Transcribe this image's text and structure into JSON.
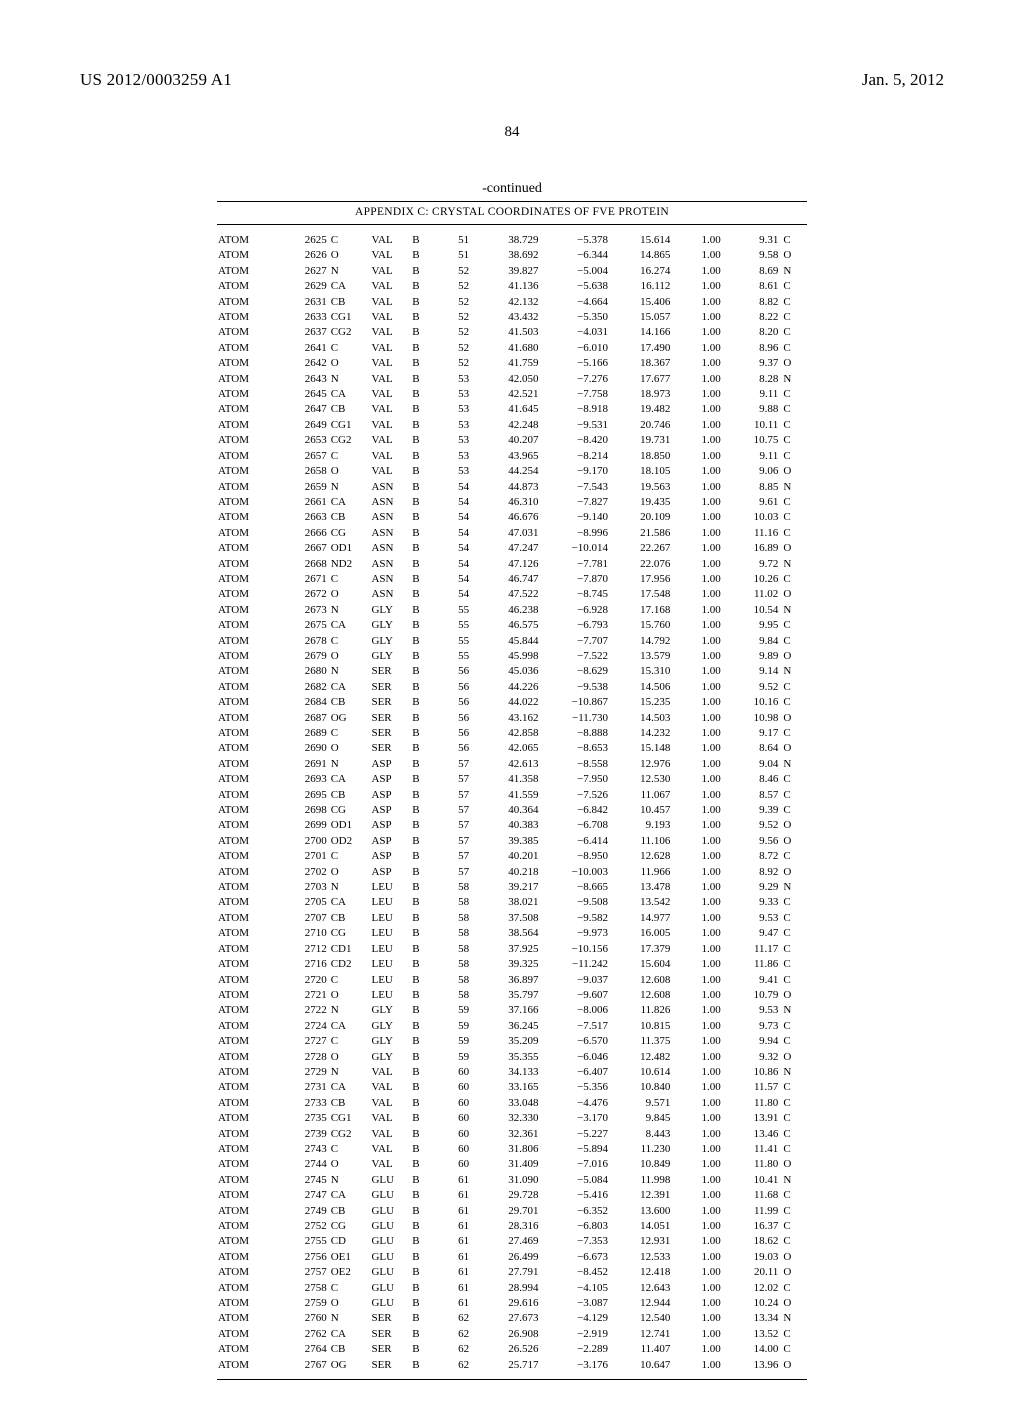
{
  "header": {
    "patent_id": "US 2012/0003259 A1",
    "date": "Jan. 5, 2012"
  },
  "page_number": "84",
  "continued": "-continued",
  "appendix_title": "APPENDIX C: CRYSTAL COORDINATES OF FVE PROTEIN",
  "rows": [
    [
      "ATOM",
      "2625",
      "C",
      "VAL",
      "B",
      "51",
      "38.729",
      "−5.378",
      "15.614",
      "1.00",
      "9.31",
      "C"
    ],
    [
      "ATOM",
      "2626",
      "O",
      "VAL",
      "B",
      "51",
      "38.692",
      "−6.344",
      "14.865",
      "1.00",
      "9.58",
      "O"
    ],
    [
      "ATOM",
      "2627",
      "N",
      "VAL",
      "B",
      "52",
      "39.827",
      "−5.004",
      "16.274",
      "1.00",
      "8.69",
      "N"
    ],
    [
      "ATOM",
      "2629",
      "CA",
      "VAL",
      "B",
      "52",
      "41.136",
      "−5.638",
      "16.112",
      "1.00",
      "8.61",
      "C"
    ],
    [
      "ATOM",
      "2631",
      "CB",
      "VAL",
      "B",
      "52",
      "42.132",
      "−4.664",
      "15.406",
      "1.00",
      "8.82",
      "C"
    ],
    [
      "ATOM",
      "2633",
      "CG1",
      "VAL",
      "B",
      "52",
      "43.432",
      "−5.350",
      "15.057",
      "1.00",
      "8.22",
      "C"
    ],
    [
      "ATOM",
      "2637",
      "CG2",
      "VAL",
      "B",
      "52",
      "41.503",
      "−4.031",
      "14.166",
      "1.00",
      "8.20",
      "C"
    ],
    [
      "ATOM",
      "2641",
      "C",
      "VAL",
      "B",
      "52",
      "41.680",
      "−6.010",
      "17.490",
      "1.00",
      "8.96",
      "C"
    ],
    [
      "ATOM",
      "2642",
      "O",
      "VAL",
      "B",
      "52",
      "41.759",
      "−5.166",
      "18.367",
      "1.00",
      "9.37",
      "O"
    ],
    [
      "ATOM",
      "2643",
      "N",
      "VAL",
      "B",
      "53",
      "42.050",
      "−7.276",
      "17.677",
      "1.00",
      "8.28",
      "N"
    ],
    [
      "ATOM",
      "2645",
      "CA",
      "VAL",
      "B",
      "53",
      "42.521",
      "−7.758",
      "18.973",
      "1.00",
      "9.11",
      "C"
    ],
    [
      "ATOM",
      "2647",
      "CB",
      "VAL",
      "B",
      "53",
      "41.645",
      "−8.918",
      "19.482",
      "1.00",
      "9.88",
      "C"
    ],
    [
      "ATOM",
      "2649",
      "CG1",
      "VAL",
      "B",
      "53",
      "42.248",
      "−9.531",
      "20.746",
      "1.00",
      "10.11",
      "C"
    ],
    [
      "ATOM",
      "2653",
      "CG2",
      "VAL",
      "B",
      "53",
      "40.207",
      "−8.420",
      "19.731",
      "1.00",
      "10.75",
      "C"
    ],
    [
      "ATOM",
      "2657",
      "C",
      "VAL",
      "B",
      "53",
      "43.965",
      "−8.214",
      "18.850",
      "1.00",
      "9.11",
      "C"
    ],
    [
      "ATOM",
      "2658",
      "O",
      "VAL",
      "B",
      "53",
      "44.254",
      "−9.170",
      "18.105",
      "1.00",
      "9.06",
      "O"
    ],
    [
      "ATOM",
      "2659",
      "N",
      "ASN",
      "B",
      "54",
      "44.873",
      "−7.543",
      "19.563",
      "1.00",
      "8.85",
      "N"
    ],
    [
      "ATOM",
      "2661",
      "CA",
      "ASN",
      "B",
      "54",
      "46.310",
      "−7.827",
      "19.435",
      "1.00",
      "9.61",
      "C"
    ],
    [
      "ATOM",
      "2663",
      "CB",
      "ASN",
      "B",
      "54",
      "46.676",
      "−9.140",
      "20.109",
      "1.00",
      "10.03",
      "C"
    ],
    [
      "ATOM",
      "2666",
      "CG",
      "ASN",
      "B",
      "54",
      "47.031",
      "−8.996",
      "21.586",
      "1.00",
      "11.16",
      "C"
    ],
    [
      "ATOM",
      "2667",
      "OD1",
      "ASN",
      "B",
      "54",
      "47.247",
      "−10.014",
      "22.267",
      "1.00",
      "16.89",
      "O"
    ],
    [
      "ATOM",
      "2668",
      "ND2",
      "ASN",
      "B",
      "54",
      "47.126",
      "−7.781",
      "22.076",
      "1.00",
      "9.72",
      "N"
    ],
    [
      "ATOM",
      "2671",
      "C",
      "ASN",
      "B",
      "54",
      "46.747",
      "−7.870",
      "17.956",
      "1.00",
      "10.26",
      "C"
    ],
    [
      "ATOM",
      "2672",
      "O",
      "ASN",
      "B",
      "54",
      "47.522",
      "−8.745",
      "17.548",
      "1.00",
      "11.02",
      "O"
    ],
    [
      "ATOM",
      "2673",
      "N",
      "GLY",
      "B",
      "55",
      "46.238",
      "−6.928",
      "17.168",
      "1.00",
      "10.54",
      "N"
    ],
    [
      "ATOM",
      "2675",
      "CA",
      "GLY",
      "B",
      "55",
      "46.575",
      "−6.793",
      "15.760",
      "1.00",
      "9.95",
      "C"
    ],
    [
      "ATOM",
      "2678",
      "C",
      "GLY",
      "B",
      "55",
      "45.844",
      "−7.707",
      "14.792",
      "1.00",
      "9.84",
      "C"
    ],
    [
      "ATOM",
      "2679",
      "O",
      "GLY",
      "B",
      "55",
      "45.998",
      "−7.522",
      "13.579",
      "1.00",
      "9.89",
      "O"
    ],
    [
      "ATOM",
      "2680",
      "N",
      "SER",
      "B",
      "56",
      "45.036",
      "−8.629",
      "15.310",
      "1.00",
      "9.14",
      "N"
    ],
    [
      "ATOM",
      "2682",
      "CA",
      "SER",
      "B",
      "56",
      "44.226",
      "−9.538",
      "14.506",
      "1.00",
      "9.52",
      "C"
    ],
    [
      "ATOM",
      "2684",
      "CB",
      "SER",
      "B",
      "56",
      "44.022",
      "−10.867",
      "15.235",
      "1.00",
      "10.16",
      "C"
    ],
    [
      "ATOM",
      "2687",
      "OG",
      "SER",
      "B",
      "56",
      "43.162",
      "−11.730",
      "14.503",
      "1.00",
      "10.98",
      "O"
    ],
    [
      "ATOM",
      "2689",
      "C",
      "SER",
      "B",
      "56",
      "42.858",
      "−8.888",
      "14.232",
      "1.00",
      "9.17",
      "C"
    ],
    [
      "ATOM",
      "2690",
      "O",
      "SER",
      "B",
      "56",
      "42.065",
      "−8.653",
      "15.148",
      "1.00",
      "8.64",
      "O"
    ],
    [
      "ATOM",
      "2691",
      "N",
      "ASP",
      "B",
      "57",
      "42.613",
      "−8.558",
      "12.976",
      "1.00",
      "9.04",
      "N"
    ],
    [
      "ATOM",
      "2693",
      "CA",
      "ASP",
      "B",
      "57",
      "41.358",
      "−7.950",
      "12.530",
      "1.00",
      "8.46",
      "C"
    ],
    [
      "ATOM",
      "2695",
      "CB",
      "ASP",
      "B",
      "57",
      "41.559",
      "−7.526",
      "11.067",
      "1.00",
      "8.57",
      "C"
    ],
    [
      "ATOM",
      "2698",
      "CG",
      "ASP",
      "B",
      "57",
      "40.364",
      "−6.842",
      "10.457",
      "1.00",
      "9.39",
      "C"
    ],
    [
      "ATOM",
      "2699",
      "OD1",
      "ASP",
      "B",
      "57",
      "40.383",
      "−6.708",
      "9.193",
      "1.00",
      "9.52",
      "O"
    ],
    [
      "ATOM",
      "2700",
      "OD2",
      "ASP",
      "B",
      "57",
      "39.385",
      "−6.414",
      "11.106",
      "1.00",
      "9.56",
      "O"
    ],
    [
      "ATOM",
      "2701",
      "C",
      "ASP",
      "B",
      "57",
      "40.201",
      "−8.950",
      "12.628",
      "1.00",
      "8.72",
      "C"
    ],
    [
      "ATOM",
      "2702",
      "O",
      "ASP",
      "B",
      "57",
      "40.218",
      "−10.003",
      "11.966",
      "1.00",
      "8.92",
      "O"
    ],
    [
      "ATOM",
      "2703",
      "N",
      "LEU",
      "B",
      "58",
      "39.217",
      "−8.665",
      "13.478",
      "1.00",
      "9.29",
      "N"
    ],
    [
      "ATOM",
      "2705",
      "CA",
      "LEU",
      "B",
      "58",
      "38.021",
      "−9.508",
      "13.542",
      "1.00",
      "9.33",
      "C"
    ],
    [
      "ATOM",
      "2707",
      "CB",
      "LEU",
      "B",
      "58",
      "37.508",
      "−9.582",
      "14.977",
      "1.00",
      "9.53",
      "C"
    ],
    [
      "ATOM",
      "2710",
      "CG",
      "LEU",
      "B",
      "58",
      "38.564",
      "−9.973",
      "16.005",
      "1.00",
      "9.47",
      "C"
    ],
    [
      "ATOM",
      "2712",
      "CD1",
      "LEU",
      "B",
      "58",
      "37.925",
      "−10.156",
      "17.379",
      "1.00",
      "11.17",
      "C"
    ],
    [
      "ATOM",
      "2716",
      "CD2",
      "LEU",
      "B",
      "58",
      "39.325",
      "−11.242",
      "15.604",
      "1.00",
      "11.86",
      "C"
    ],
    [
      "ATOM",
      "2720",
      "C",
      "LEU",
      "B",
      "58",
      "36.897",
      "−9.037",
      "12.608",
      "1.00",
      "9.41",
      "C"
    ],
    [
      "ATOM",
      "2721",
      "O",
      "LEU",
      "B",
      "58",
      "35.797",
      "−9.607",
      "12.608",
      "1.00",
      "10.79",
      "O"
    ],
    [
      "ATOM",
      "2722",
      "N",
      "GLY",
      "B",
      "59",
      "37.166",
      "−8.006",
      "11.826",
      "1.00",
      "9.53",
      "N"
    ],
    [
      "ATOM",
      "2724",
      "CA",
      "GLY",
      "B",
      "59",
      "36.245",
      "−7.517",
      "10.815",
      "1.00",
      "9.73",
      "C"
    ],
    [
      "ATOM",
      "2727",
      "C",
      "GLY",
      "B",
      "59",
      "35.209",
      "−6.570",
      "11.375",
      "1.00",
      "9.94",
      "C"
    ],
    [
      "ATOM",
      "2728",
      "O",
      "GLY",
      "B",
      "59",
      "35.355",
      "−6.046",
      "12.482",
      "1.00",
      "9.32",
      "O"
    ],
    [
      "ATOM",
      "2729",
      "N",
      "VAL",
      "B",
      "60",
      "34.133",
      "−6.407",
      "10.614",
      "1.00",
      "10.86",
      "N"
    ],
    [
      "ATOM",
      "2731",
      "CA",
      "VAL",
      "B",
      "60",
      "33.165",
      "−5.356",
      "10.840",
      "1.00",
      "11.57",
      "C"
    ],
    [
      "ATOM",
      "2733",
      "CB",
      "VAL",
      "B",
      "60",
      "33.048",
      "−4.476",
      "9.571",
      "1.00",
      "11.80",
      "C"
    ],
    [
      "ATOM",
      "2735",
      "CG1",
      "VAL",
      "B",
      "60",
      "32.330",
      "−3.170",
      "9.845",
      "1.00",
      "13.91",
      "C"
    ],
    [
      "ATOM",
      "2739",
      "CG2",
      "VAL",
      "B",
      "60",
      "32.361",
      "−5.227",
      "8.443",
      "1.00",
      "13.46",
      "C"
    ],
    [
      "ATOM",
      "2743",
      "C",
      "VAL",
      "B",
      "60",
      "31.806",
      "−5.894",
      "11.230",
      "1.00",
      "11.41",
      "C"
    ],
    [
      "ATOM",
      "2744",
      "O",
      "VAL",
      "B",
      "60",
      "31.409",
      "−7.016",
      "10.849",
      "1.00",
      "11.80",
      "O"
    ],
    [
      "ATOM",
      "2745",
      "N",
      "GLU",
      "B",
      "61",
      "31.090",
      "−5.084",
      "11.998",
      "1.00",
      "10.41",
      "N"
    ],
    [
      "ATOM",
      "2747",
      "CA",
      "GLU",
      "B",
      "61",
      "29.728",
      "−5.416",
      "12.391",
      "1.00",
      "11.68",
      "C"
    ],
    [
      "ATOM",
      "2749",
      "CB",
      "GLU",
      "B",
      "61",
      "29.701",
      "−6.352",
      "13.600",
      "1.00",
      "11.99",
      "C"
    ],
    [
      "ATOM",
      "2752",
      "CG",
      "GLU",
      "B",
      "61",
      "28.316",
      "−6.803",
      "14.051",
      "1.00",
      "16.37",
      "C"
    ],
    [
      "ATOM",
      "2755",
      "CD",
      "GLU",
      "B",
      "61",
      "27.469",
      "−7.353",
      "12.931",
      "1.00",
      "18.62",
      "C"
    ],
    [
      "ATOM",
      "2756",
      "OE1",
      "GLU",
      "B",
      "61",
      "26.499",
      "−6.673",
      "12.533",
      "1.00",
      "19.03",
      "O"
    ],
    [
      "ATOM",
      "2757",
      "OE2",
      "GLU",
      "B",
      "61",
      "27.791",
      "−8.452",
      "12.418",
      "1.00",
      "20.11",
      "O"
    ],
    [
      "ATOM",
      "2758",
      "C",
      "GLU",
      "B",
      "61",
      "28.994",
      "−4.105",
      "12.643",
      "1.00",
      "12.02",
      "C"
    ],
    [
      "ATOM",
      "2759",
      "O",
      "GLU",
      "B",
      "61",
      "29.616",
      "−3.087",
      "12.944",
      "1.00",
      "10.24",
      "O"
    ],
    [
      "ATOM",
      "2760",
      "N",
      "SER",
      "B",
      "62",
      "27.673",
      "−4.129",
      "12.540",
      "1.00",
      "13.34",
      "N"
    ],
    [
      "ATOM",
      "2762",
      "CA",
      "SER",
      "B",
      "62",
      "26.908",
      "−2.919",
      "12.741",
      "1.00",
      "13.52",
      "C"
    ],
    [
      "ATOM",
      "2764",
      "CB",
      "SER",
      "B",
      "62",
      "26.526",
      "−2.289",
      "11.407",
      "1.00",
      "14.00",
      "C"
    ],
    [
      "ATOM",
      "2767",
      "OG",
      "SER",
      "B",
      "62",
      "25.717",
      "−3.176",
      "10.647",
      "1.00",
      "13.96",
      "O"
    ]
  ]
}
